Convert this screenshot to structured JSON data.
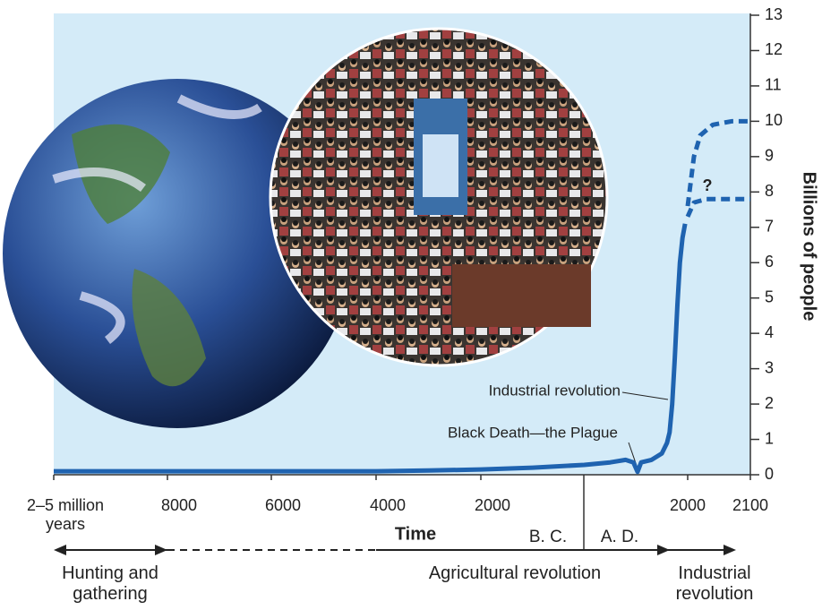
{
  "chart_data": {
    "type": "line",
    "y_label": "Billions of people",
    "x_label": "Time",
    "era_left": "B. C.",
    "era_right": "A. D.",
    "ylim": [
      0,
      13
    ],
    "yticks": [
      0,
      1,
      2,
      3,
      4,
      5,
      6,
      7,
      8,
      9,
      10,
      11,
      12,
      13
    ],
    "xlim": [
      -10000,
      2100
    ],
    "xticks": [
      {
        "value": -10000,
        "label": "2–5 million years"
      },
      {
        "value": -8000,
        "label": "8000"
      },
      {
        "value": -6000,
        "label": "6000"
      },
      {
        "value": -4000,
        "label": "4000"
      },
      {
        "value": -2000,
        "label": "2000"
      },
      2000,
      2100
    ],
    "series": [
      {
        "color": "#1f63b0",
        "style": "solid",
        "x": [
          -10000,
          -6000,
          -4000,
          -3000,
          -2000,
          -1000,
          0,
          500,
          800,
          950,
          1030,
          1100,
          1300,
          1500,
          1600,
          1650,
          1700,
          1750,
          1800,
          1850,
          1900,
          1950
        ],
        "values": [
          0.1,
          0.1,
          0.1,
          0.12,
          0.15,
          0.2,
          0.28,
          0.35,
          0.42,
          0.35,
          0.08,
          0.35,
          0.42,
          0.6,
          0.9,
          1.2,
          2.0,
          3.3,
          4.8,
          6.0,
          6.7,
          7.1
        ]
      },
      {
        "color": "#1f63b0",
        "style": "dashed",
        "x": [
          2000,
          2010,
          2020,
          2040,
          2070,
          2100
        ],
        "values": [
          7.6,
          9.0,
          9.6,
          9.9,
          10,
          10
        ]
      },
      {
        "color": "#1f63b0",
        "style": "dashed",
        "x": [
          2000,
          2010,
          2030,
          2060,
          2100
        ],
        "values": [
          7.3,
          7.7,
          7.8,
          7.8,
          7.8
        ]
      }
    ],
    "annotations": [
      "Industrial revolution",
      "Black Death—the Plague",
      "?"
    ],
    "eras": [
      "Hunting and gathering",
      "Agricultural revolution",
      "Industrial revolution"
    ]
  }
}
